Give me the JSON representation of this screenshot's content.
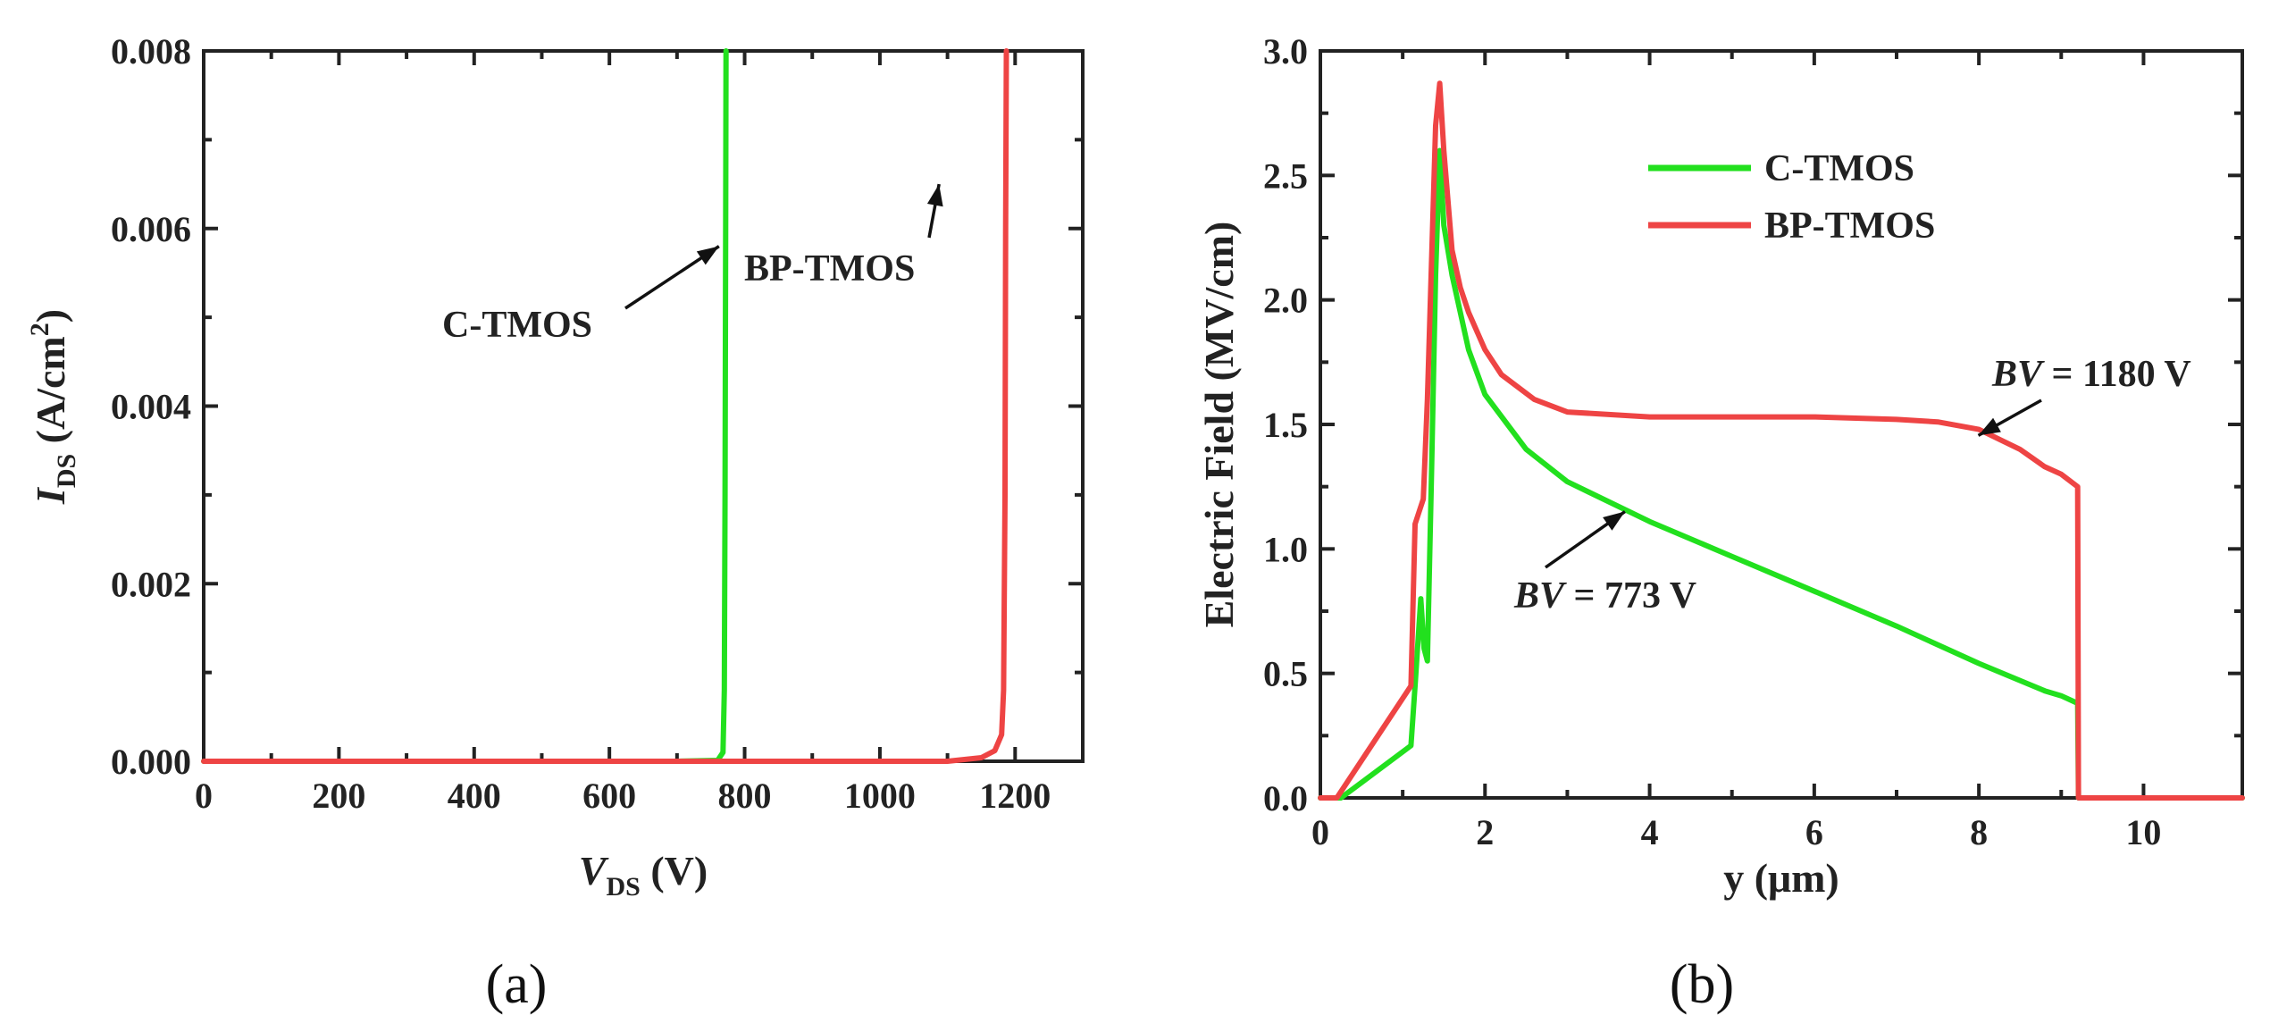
{
  "chart_data": [
    {
      "type": "line",
      "panel_label": "(a)",
      "xlabel_main": "V",
      "xlabel_sub": "DS",
      "xlabel_unit": " (V)",
      "ylabel_main": "I",
      "ylabel_sub": "DS",
      "ylabel_unit_pre": " (A/cm",
      "ylabel_sup": "2",
      "ylabel_unit_post": ")",
      "xlim": [
        0,
        1300
      ],
      "ylim": [
        0,
        0.008
      ],
      "x_ticks": [
        "0",
        "200",
        "400",
        "600",
        "800",
        "1000",
        "1200"
      ],
      "y_ticks": [
        "0.000",
        "0.002",
        "0.004",
        "0.006",
        "0.008"
      ],
      "series": [
        {
          "name": "C-TMOS",
          "color": "#22e01e",
          "x": [
            0,
            700,
            760,
            768,
            770,
            771,
            772,
            772.5
          ],
          "y": [
            0,
            0,
            1e-05,
            0.0001,
            0.0008,
            0.003,
            0.006,
            0.008
          ]
        },
        {
          "name": "BP-TMOS",
          "color": "#ee4444",
          "x": [
            0,
            1100,
            1150,
            1170,
            1180,
            1183,
            1185,
            1186,
            1187
          ],
          "y": [
            0,
            0,
            4e-05,
            0.00012,
            0.0003,
            0.0008,
            0.003,
            0.006,
            0.008
          ]
        }
      ],
      "annotations": [
        {
          "text": "C-TMOS",
          "points_to": [
            770,
            0.0058
          ]
        },
        {
          "text": "BP-TMOS",
          "points_to": [
            1180,
            0.0065
          ]
        }
      ]
    },
    {
      "type": "line",
      "panel_label": "(b)",
      "xlabel": "y (μm)",
      "ylabel": "Electric Field (MV/cm)",
      "xlim": [
        0,
        11.2
      ],
      "ylim": [
        0,
        3.0
      ],
      "x_ticks": [
        "0",
        "2",
        "4",
        "6",
        "8",
        "10"
      ],
      "y_ticks": [
        "0.0",
        "0.5",
        "1.0",
        "1.5",
        "2.0",
        "2.5",
        "3.0"
      ],
      "legend": "top-center",
      "series": [
        {
          "name": "C-TMOS",
          "color": "#22e01e",
          "x": [
            0,
            0.25,
            1.1,
            1.15,
            1.22,
            1.26,
            1.3,
            1.35,
            1.4,
            1.45,
            1.5,
            1.6,
            1.8,
            2.0,
            2.5,
            3.0,
            4.0,
            5.0,
            6.0,
            7.0,
            8.0,
            8.8,
            9.0,
            9.2,
            9.21,
            9.3,
            11.2
          ],
          "y": [
            0,
            0,
            0.21,
            0.45,
            0.8,
            0.6,
            0.55,
            1.3,
            2.1,
            2.6,
            2.3,
            2.1,
            1.8,
            1.62,
            1.4,
            1.27,
            1.11,
            0.97,
            0.83,
            0.69,
            0.54,
            0.43,
            0.41,
            0.38,
            0,
            0,
            0
          ]
        },
        {
          "name": "BP-TMOS",
          "color": "#ee4444",
          "x": [
            0,
            0.2,
            1.1,
            1.15,
            1.2,
            1.25,
            1.3,
            1.4,
            1.45,
            1.5,
            1.6,
            1.7,
            1.8,
            2.0,
            2.2,
            2.6,
            3.0,
            4.0,
            5.0,
            6.0,
            7.0,
            7.5,
            8.0,
            8.5,
            8.8,
            9.0,
            9.2,
            9.21,
            9.3,
            11.2
          ],
          "y": [
            0,
            0,
            0.45,
            1.1,
            1.15,
            1.2,
            1.6,
            2.7,
            2.87,
            2.6,
            2.2,
            2.05,
            1.95,
            1.8,
            1.7,
            1.6,
            1.55,
            1.53,
            1.53,
            1.53,
            1.52,
            1.51,
            1.48,
            1.4,
            1.33,
            1.3,
            1.25,
            0,
            0,
            0
          ]
        }
      ],
      "annotations": [
        {
          "label_italic": "BV",
          "label_rest": " = 1180 V",
          "points_to": [
            7.95,
            1.47
          ]
        },
        {
          "label_italic": "BV",
          "label_rest": " = 773 V",
          "points_to": [
            3.7,
            1.15
          ]
        }
      ]
    }
  ]
}
